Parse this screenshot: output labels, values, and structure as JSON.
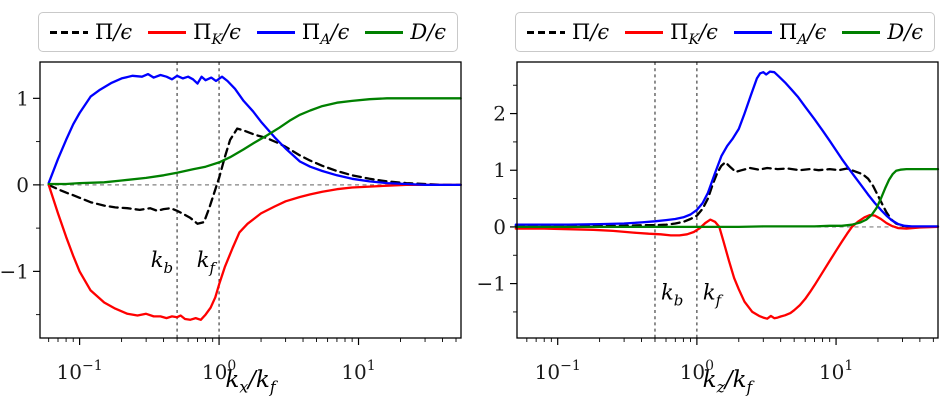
{
  "chart_data": [
    {
      "type": "line",
      "title": "",
      "xscale": "log",
      "xlabel_parts": {
        "p1": "k",
        "s1": "x",
        "p2": "/k",
        "s2": "f"
      },
      "xlim": [
        0.052,
        54.3
      ],
      "ylim": [
        -1.77,
        1.42
      ],
      "yticks": [
        -1,
        0,
        1
      ],
      "xtick_exponents": [
        -1,
        0,
        1
      ],
      "grid": false,
      "zero_line_y": 0,
      "zero_line_color": "#808080",
      "vlines": [
        {
          "x": 0.5,
          "label_main": "k",
          "label_sub": "b",
          "side": "left",
          "label_y": -0.95
        },
        {
          "x": 1.0,
          "label_main": "k",
          "label_sub": "f",
          "side": "left",
          "label_y": -0.95
        }
      ],
      "legend": {
        "position": "top",
        "items": [
          {
            "pre": "Π",
            "sub": "",
            "post": "/ϵ",
            "color": "#000000",
            "dash": true
          },
          {
            "pre": "Π",
            "sub": "K",
            "post": "/ϵ",
            "color": "#ff0000",
            "dash": false
          },
          {
            "pre": "Π",
            "sub": "A",
            "post": "/ϵ",
            "color": "#0000ff",
            "dash": false
          },
          {
            "pre": "D",
            "sub": "",
            "post": "/ϵ",
            "color": "#008000",
            "dash": false
          }
        ]
      },
      "series": [
        {
          "name": "pi",
          "color": "#000000",
          "dash": [
            8,
            5
          ],
          "x": [
            0.06,
            0.07,
            0.08,
            0.09,
            0.1,
            0.12,
            0.15,
            0.18,
            0.22,
            0.27,
            0.32,
            0.36,
            0.4,
            0.45,
            0.5,
            0.56,
            0.62,
            0.7,
            0.78,
            0.85,
            0.92,
            1.0,
            1.1,
            1.2,
            1.35,
            1.5,
            1.8,
            2.2,
            2.6,
            3.0,
            3.8,
            4.5,
            5.5,
            7.0,
            9.0,
            12.0,
            16.0,
            22.0,
            30.0,
            40.0,
            54.0
          ],
          "y": [
            0.0,
            -0.05,
            -0.09,
            -0.12,
            -0.15,
            -0.2,
            -0.24,
            -0.26,
            -0.27,
            -0.29,
            -0.27,
            -0.3,
            -0.28,
            -0.27,
            -0.3,
            -0.34,
            -0.38,
            -0.45,
            -0.43,
            -0.27,
            -0.1,
            0.08,
            0.32,
            0.52,
            0.65,
            0.63,
            0.58,
            0.54,
            0.49,
            0.44,
            0.34,
            0.28,
            0.22,
            0.16,
            0.11,
            0.07,
            0.04,
            0.02,
            0.01,
            0.0,
            0.0
          ]
        },
        {
          "name": "pi_k",
          "color": "#ff0000",
          "dash": null,
          "x": [
            0.06,
            0.07,
            0.08,
            0.09,
            0.1,
            0.12,
            0.15,
            0.18,
            0.22,
            0.26,
            0.3,
            0.34,
            0.38,
            0.42,
            0.46,
            0.5,
            0.53,
            0.57,
            0.62,
            0.68,
            0.74,
            0.8,
            0.87,
            0.94,
            1.0,
            1.1,
            1.25,
            1.4,
            1.6,
            2.0,
            2.5,
            3.0,
            3.8,
            4.5,
            5.5,
            7.0,
            9.0,
            12.0,
            16.0,
            22.0,
            30.0,
            54.0
          ],
          "y": [
            0.0,
            -0.33,
            -0.6,
            -0.82,
            -1.0,
            -1.22,
            -1.36,
            -1.43,
            -1.49,
            -1.51,
            -1.49,
            -1.52,
            -1.52,
            -1.54,
            -1.52,
            -1.53,
            -1.51,
            -1.55,
            -1.56,
            -1.54,
            -1.56,
            -1.5,
            -1.42,
            -1.3,
            -1.15,
            -0.95,
            -0.73,
            -0.55,
            -0.45,
            -0.33,
            -0.25,
            -0.19,
            -0.14,
            -0.11,
            -0.08,
            -0.05,
            -0.03,
            -0.02,
            -0.01,
            0.0,
            0.0,
            0.0
          ]
        },
        {
          "name": "pi_a",
          "color": "#0000ff",
          "dash": null,
          "x": [
            0.06,
            0.07,
            0.08,
            0.09,
            0.1,
            0.12,
            0.14,
            0.17,
            0.2,
            0.24,
            0.28,
            0.31,
            0.34,
            0.38,
            0.42,
            0.46,
            0.5,
            0.55,
            0.6,
            0.65,
            0.7,
            0.75,
            0.8,
            0.88,
            0.95,
            1.05,
            1.15,
            1.3,
            1.5,
            1.75,
            2.0,
            2.5,
            3.0,
            3.8,
            4.5,
            5.5,
            7.0,
            9.0,
            12.0,
            16.0,
            22.0,
            30.0,
            54.0
          ],
          "y": [
            0.02,
            0.3,
            0.52,
            0.7,
            0.83,
            1.02,
            1.1,
            1.18,
            1.23,
            1.26,
            1.25,
            1.28,
            1.24,
            1.27,
            1.25,
            1.22,
            1.26,
            1.23,
            1.25,
            1.22,
            1.17,
            1.25,
            1.21,
            1.24,
            1.2,
            1.25,
            1.2,
            1.11,
            0.97,
            0.85,
            0.73,
            0.55,
            0.42,
            0.27,
            0.21,
            0.16,
            0.11,
            0.07,
            0.04,
            0.02,
            0.01,
            0.0,
            0.0
          ]
        },
        {
          "name": "d",
          "color": "#008000",
          "dash": null,
          "x": [
            0.06,
            0.08,
            0.1,
            0.15,
            0.2,
            0.3,
            0.4,
            0.5,
            0.65,
            0.8,
            1.0,
            1.2,
            1.5,
            1.8,
            2.2,
            2.7,
            3.2,
            3.8,
            4.5,
            5.5,
            7.0,
            9.0,
            12.0,
            16.0,
            22.0,
            30.0,
            40.0,
            54.0
          ],
          "y": [
            0.01,
            0.01,
            0.02,
            0.03,
            0.05,
            0.08,
            0.11,
            0.14,
            0.18,
            0.21,
            0.26,
            0.32,
            0.41,
            0.49,
            0.57,
            0.66,
            0.74,
            0.81,
            0.86,
            0.91,
            0.95,
            0.97,
            0.99,
            1.0,
            1.0,
            1.0,
            1.0,
            1.0
          ]
        }
      ]
    },
    {
      "type": "line",
      "title": "",
      "xscale": "log",
      "xlabel_parts": {
        "p1": "k",
        "s1": "z",
        "p2": "/k",
        "s2": "f"
      },
      "xlim": [
        0.051,
        54.0
      ],
      "ylim": [
        -1.96,
        2.91
      ],
      "yticks": [
        -1,
        0,
        1,
        2
      ],
      "xtick_exponents": [
        -1,
        0,
        1
      ],
      "grid": false,
      "zero_line_y": 0,
      "zero_line_color": "#808080",
      "vlines": [
        {
          "x": 0.5,
          "label_main": "k",
          "label_sub": "b",
          "side": "right",
          "label_y": -1.28
        },
        {
          "x": 1.0,
          "label_main": "k",
          "label_sub": "f",
          "side": "right",
          "label_y": -1.28
        }
      ],
      "legend": {
        "position": "top",
        "items": [
          {
            "pre": "Π",
            "sub": "",
            "post": "/ϵ",
            "color": "#000000",
            "dash": true
          },
          {
            "pre": "Π",
            "sub": "K",
            "post": "/ϵ",
            "color": "#ff0000",
            "dash": false
          },
          {
            "pre": "Π",
            "sub": "A",
            "post": "/ϵ",
            "color": "#0000ff",
            "dash": false
          },
          {
            "pre": "D",
            "sub": "",
            "post": "/ϵ",
            "color": "#008000",
            "dash": false
          }
        ]
      },
      "series": [
        {
          "name": "pi",
          "color": "#000000",
          "dash": [
            8,
            5
          ],
          "x": [
            0.05,
            0.08,
            0.12,
            0.2,
            0.3,
            0.4,
            0.5,
            0.6,
            0.7,
            0.8,
            0.9,
            1.0,
            1.1,
            1.2,
            1.3,
            1.4,
            1.5,
            1.6,
            1.75,
            1.9,
            2.1,
            2.4,
            2.8,
            3.2,
            3.8,
            4.5,
            5.5,
            6.5,
            7.5,
            9.0,
            10.5,
            12.0,
            13.0,
            14.0,
            15.5,
            17.0,
            18.5,
            20.0,
            21.5,
            23.0,
            25.0,
            27.0,
            30.0,
            35.0,
            54.0
          ],
          "y": [
            0.02,
            0.02,
            0.02,
            0.02,
            0.02,
            0.03,
            0.03,
            0.04,
            0.06,
            0.09,
            0.14,
            0.2,
            0.32,
            0.5,
            0.75,
            0.95,
            1.08,
            1.14,
            1.05,
            0.97,
            1.0,
            1.04,
            1.01,
            1.04,
            1.02,
            1.03,
            1.0,
            1.02,
            1.0,
            1.02,
            1.0,
            1.03,
            1.0,
            0.97,
            0.93,
            0.85,
            0.72,
            0.55,
            0.4,
            0.26,
            0.13,
            0.06,
            0.02,
            0.0,
            0.0
          ]
        },
        {
          "name": "pi_k",
          "color": "#ff0000",
          "dash": null,
          "x": [
            0.05,
            0.08,
            0.12,
            0.18,
            0.25,
            0.35,
            0.45,
            0.55,
            0.65,
            0.75,
            0.85,
            0.95,
            1.05,
            1.15,
            1.25,
            1.35,
            1.45,
            1.55,
            1.7,
            1.85,
            2.0,
            2.2,
            2.5,
            2.8,
            3.0,
            3.2,
            3.4,
            3.6,
            3.8,
            4.0,
            4.3,
            4.7,
            5.0,
            5.5,
            6.0,
            6.5,
            7.0,
            8.0,
            9.0,
            10.0,
            11.0,
            12.0,
            13.0,
            14.5,
            16.0,
            17.5,
            19.0,
            21.0,
            23.0,
            25.0,
            28.0,
            32.0,
            40.0,
            54.0
          ],
          "y": [
            -0.03,
            -0.03,
            -0.04,
            -0.05,
            -0.07,
            -0.1,
            -0.12,
            -0.13,
            -0.15,
            -0.15,
            -0.13,
            -0.09,
            -0.02,
            0.07,
            0.13,
            0.09,
            0.0,
            -0.25,
            -0.6,
            -0.9,
            -1.1,
            -1.32,
            -1.5,
            -1.57,
            -1.6,
            -1.62,
            -1.57,
            -1.61,
            -1.6,
            -1.58,
            -1.56,
            -1.52,
            -1.47,
            -1.38,
            -1.27,
            -1.15,
            -1.03,
            -0.8,
            -0.6,
            -0.42,
            -0.26,
            -0.12,
            0.0,
            0.1,
            0.17,
            0.21,
            0.2,
            0.14,
            0.07,
            0.02,
            -0.02,
            -0.03,
            -0.01,
            0.0
          ]
        },
        {
          "name": "pi_a",
          "color": "#0000ff",
          "dash": null,
          "x": [
            0.05,
            0.08,
            0.12,
            0.2,
            0.3,
            0.4,
            0.5,
            0.6,
            0.7,
            0.8,
            0.9,
            1.0,
            1.1,
            1.2,
            1.35,
            1.5,
            1.65,
            1.8,
            2.0,
            2.2,
            2.45,
            2.7,
            2.85,
            3.0,
            3.15,
            3.35,
            3.6,
            3.9,
            4.3,
            4.8,
            5.3,
            6.0,
            7.0,
            8.0,
            9.0,
            10.0,
            11.0,
            12.0,
            13.5,
            15.0,
            17.0,
            19.0,
            21.0,
            23.0,
            25.0,
            28.0,
            31.0,
            35.0,
            54.0
          ],
          "y": [
            0.04,
            0.04,
            0.04,
            0.05,
            0.06,
            0.08,
            0.1,
            0.12,
            0.14,
            0.17,
            0.22,
            0.3,
            0.42,
            0.6,
            0.95,
            1.25,
            1.43,
            1.55,
            1.73,
            2.0,
            2.33,
            2.62,
            2.71,
            2.73,
            2.69,
            2.74,
            2.73,
            2.65,
            2.55,
            2.42,
            2.3,
            2.12,
            1.9,
            1.7,
            1.52,
            1.35,
            1.2,
            1.07,
            0.9,
            0.75,
            0.57,
            0.42,
            0.3,
            0.2,
            0.12,
            0.05,
            0.02,
            0.01,
            0.01
          ]
        },
        {
          "name": "d",
          "color": "#008000",
          "dash": null,
          "x": [
            0.05,
            0.1,
            0.3,
            0.6,
            1.0,
            2.0,
            3.0,
            4.0,
            5.0,
            7.0,
            9.0,
            11.0,
            13.0,
            15.0,
            16.5,
            18.0,
            19.5,
            21.0,
            22.5,
            24.0,
            25.5,
            27.0,
            29.0,
            32.0,
            36.0,
            42.0,
            54.0
          ],
          "y": [
            0.0,
            0.0,
            0.0,
            0.0,
            0.0,
            0.0,
            0.01,
            0.01,
            0.01,
            0.01,
            0.02,
            0.02,
            0.04,
            0.08,
            0.13,
            0.21,
            0.33,
            0.5,
            0.68,
            0.83,
            0.93,
            0.99,
            1.01,
            1.02,
            1.02,
            1.02,
            1.02
          ]
        }
      ]
    }
  ]
}
